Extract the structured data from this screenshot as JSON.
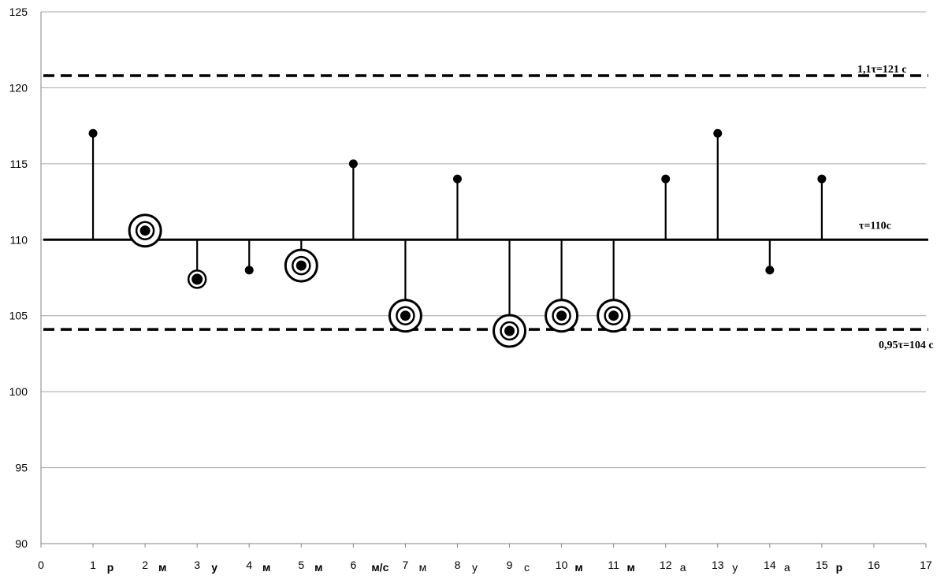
{
  "chart_data": {
    "type": "scatter",
    "title": "",
    "xlabel": "",
    "ylabel": "",
    "xlim": [
      0,
      17
    ],
    "ylim": [
      90,
      125
    ],
    "x_ticks": [
      0,
      1,
      2,
      3,
      4,
      5,
      6,
      7,
      8,
      9,
      10,
      11,
      12,
      13,
      14,
      15,
      16,
      17
    ],
    "y_ticks": [
      90,
      95,
      100,
      105,
      110,
      115,
      120,
      125
    ],
    "grid": "horizontal",
    "baseline": {
      "y": 110,
      "label": "τ=110c"
    },
    "reference_lines": [
      {
        "y": 120.8,
        "label": "1,1τ=121 c",
        "style": "dashed"
      },
      {
        "y": 104.1,
        "label": "0,95τ=104 c",
        "style": "dashed"
      }
    ],
    "points": [
      {
        "x": 1,
        "y": 117,
        "marker": "dot"
      },
      {
        "x": 2,
        "y": 110.6,
        "marker": "ring"
      },
      {
        "x": 3,
        "y": 107.4,
        "marker": "dot-large"
      },
      {
        "x": 4,
        "y": 108,
        "marker": "dot"
      },
      {
        "x": 5,
        "y": 108.3,
        "marker": "ring"
      },
      {
        "x": 6,
        "y": 115,
        "marker": "dot"
      },
      {
        "x": 7,
        "y": 105,
        "marker": "ring"
      },
      {
        "x": 8,
        "y": 114,
        "marker": "dot"
      },
      {
        "x": 9,
        "y": 104,
        "marker": "ring"
      },
      {
        "x": 10,
        "y": 105,
        "marker": "ring"
      },
      {
        "x": 11,
        "y": 105,
        "marker": "ring"
      },
      {
        "x": 12,
        "y": 114,
        "marker": "dot"
      },
      {
        "x": 13,
        "y": 117,
        "marker": "dot"
      },
      {
        "x": 14,
        "y": 108,
        "marker": "dot"
      },
      {
        "x": 15,
        "y": 114,
        "marker": "dot"
      }
    ],
    "category_labels": [
      {
        "x": 1,
        "text": "р",
        "bold": true
      },
      {
        "x": 2,
        "text": "м",
        "bold": true
      },
      {
        "x": 3,
        "text": "у",
        "bold": true
      },
      {
        "x": 4,
        "text": "м",
        "bold": true
      },
      {
        "x": 5,
        "text": "м",
        "bold": true
      },
      {
        "x": 6,
        "text": "м/с",
        "bold": true
      },
      {
        "x": 7,
        "text": "м",
        "bold": false
      },
      {
        "x": 8,
        "text": "у",
        "bold": false
      },
      {
        "x": 9,
        "text": "с",
        "bold": false
      },
      {
        "x": 10,
        "text": "м",
        "bold": true
      },
      {
        "x": 11,
        "text": "м",
        "bold": true
      },
      {
        "x": 12,
        "text": "а",
        "bold": false
      },
      {
        "x": 13,
        "text": "у",
        "bold": false
      },
      {
        "x": 14,
        "text": "а",
        "bold": false
      },
      {
        "x": 15,
        "text": "р",
        "bold": true
      }
    ]
  }
}
